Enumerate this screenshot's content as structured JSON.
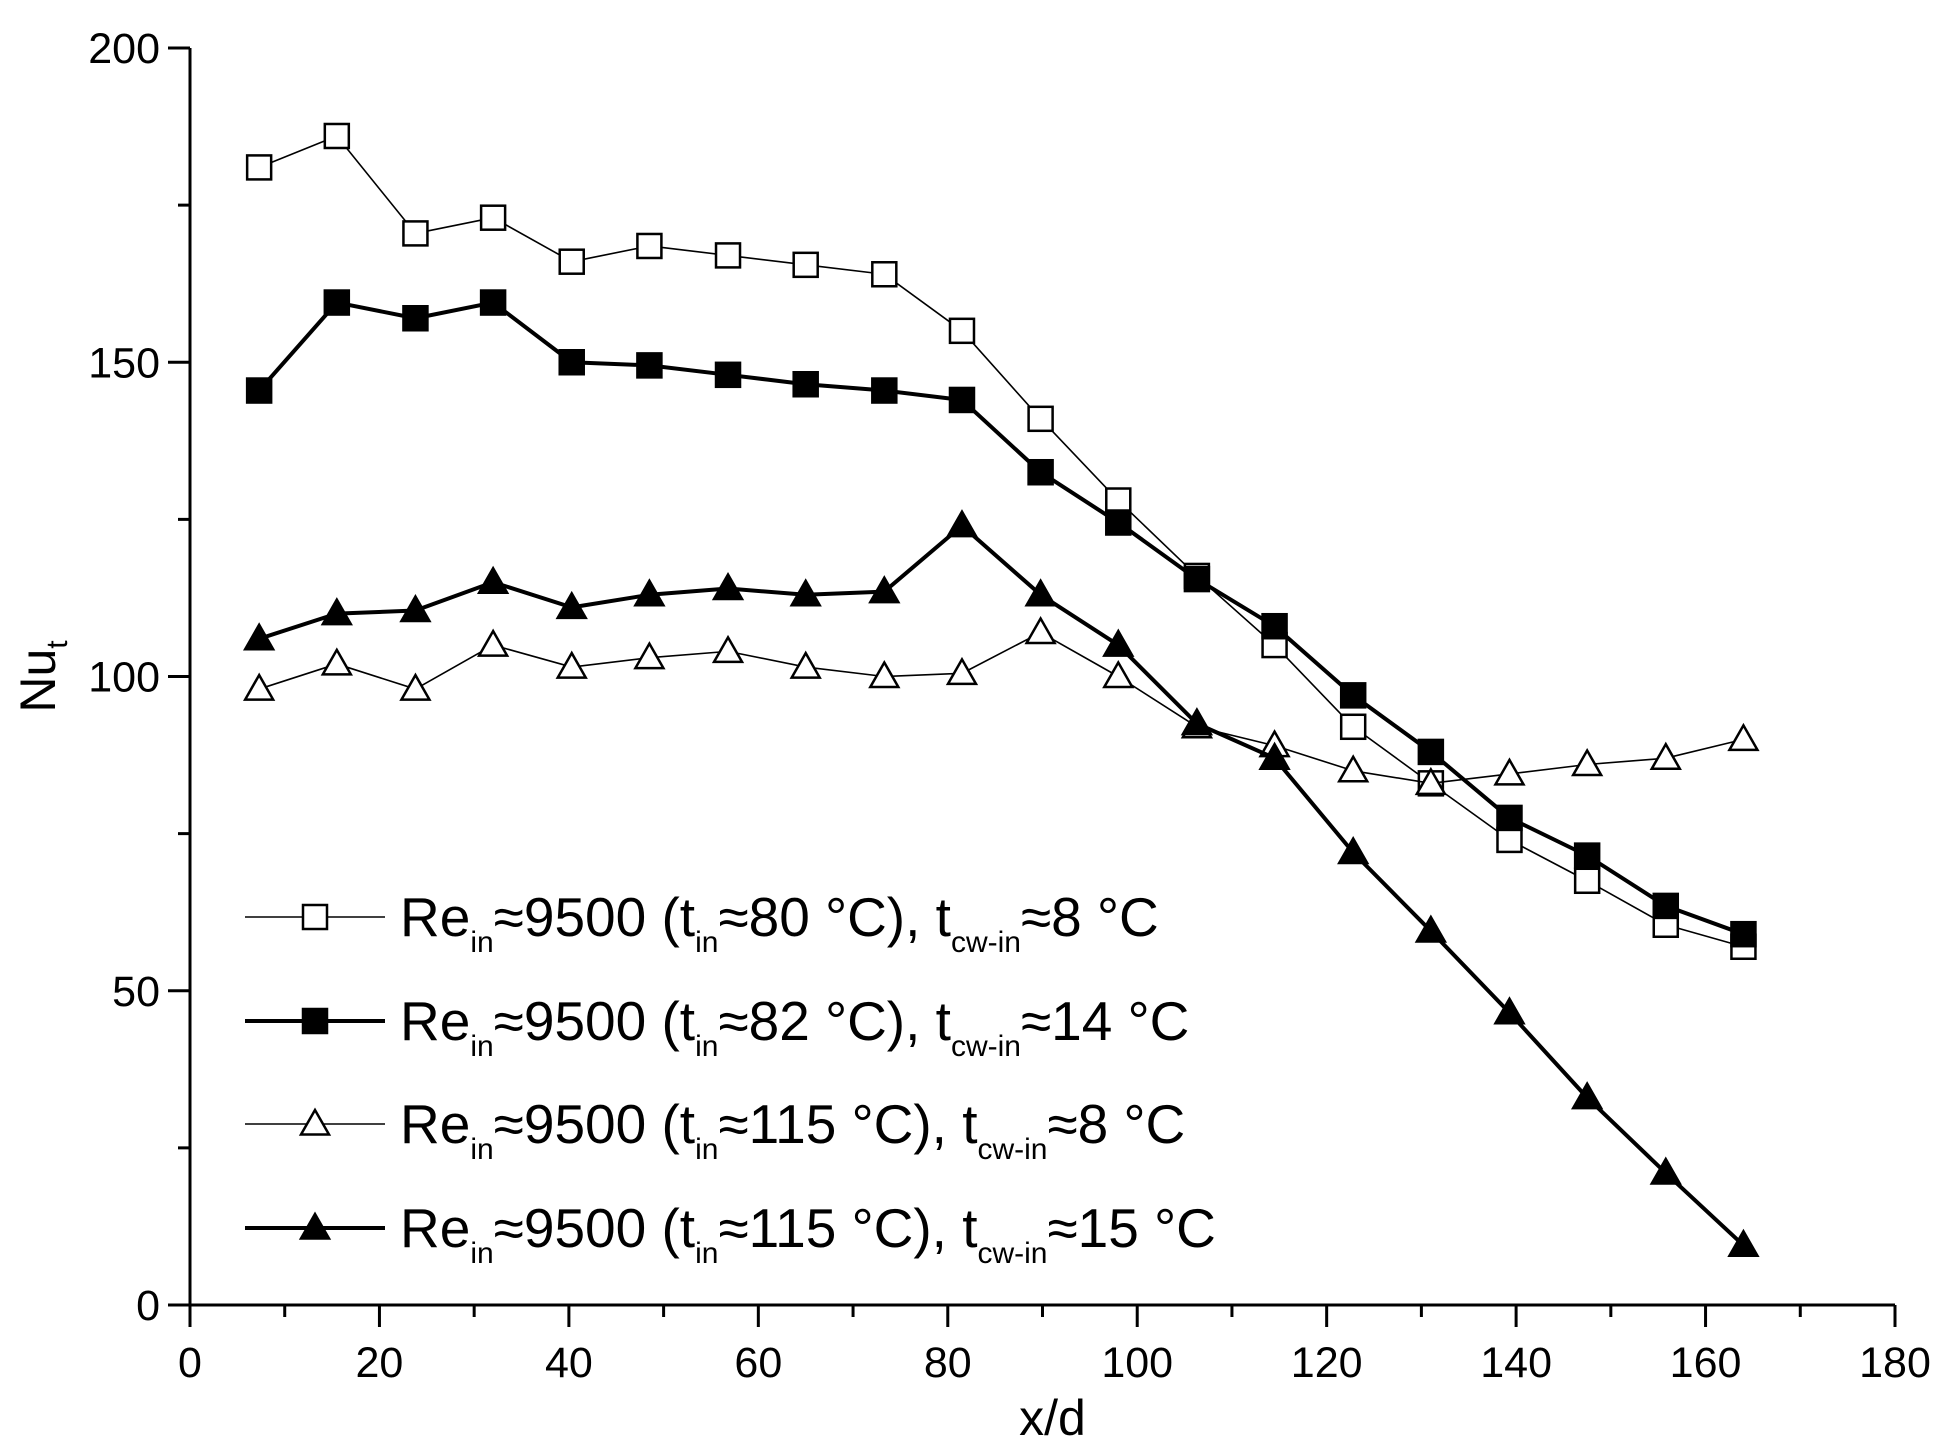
{
  "chart_data": {
    "type": "line",
    "title": "",
    "xlabel": "x/d",
    "ylabel": {
      "base": "Nu",
      "sub": "t"
    },
    "xlim": [
      0,
      180
    ],
    "ylim": [
      0,
      200
    ],
    "xticks": [
      0,
      20,
      40,
      60,
      80,
      100,
      120,
      140,
      160,
      180
    ],
    "yticks": [
      0,
      50,
      100,
      150,
      200
    ],
    "grid": false,
    "legend_position": "bottom-left",
    "x": [
      7.3,
      15.5,
      23.8,
      32.0,
      40.3,
      48.5,
      56.8,
      65.0,
      73.3,
      81.5,
      89.8,
      98.0,
      106.3,
      114.5,
      122.8,
      131.0,
      139.3,
      147.5,
      155.8,
      164.0
    ],
    "series": [
      {
        "name": "Re_in≈9500 (t_in≈80 °C), t_cw-in≈8 °C",
        "legend": {
          "p1": "Re",
          "s1": "in",
          "p2": "≈9500 (t",
          "s2": "in",
          "p3": "≈80 °C), t",
          "s3": "cw-in",
          "p4": "≈8 °C"
        },
        "marker": "square-open",
        "values": [
          181,
          186,
          170.5,
          173,
          166,
          168.5,
          167,
          165.5,
          164,
          155,
          141,
          128,
          116,
          105,
          92,
          83,
          74,
          67.5,
          60.5,
          57
        ]
      },
      {
        "name": "Re_in≈9500 (t_in≈82 °C), t_cw-in≈14 °C",
        "legend": {
          "p1": "Re",
          "s1": "in",
          "p2": "≈9500 (t",
          "s2": "in",
          "p3": "≈82 °C), t",
          "s3": "cw-in",
          "p4": "≈14 °C"
        },
        "marker": "square-filled",
        "values": [
          145.5,
          159.5,
          157,
          159.5,
          150,
          149.5,
          148,
          146.5,
          145.5,
          144,
          132.5,
          124.5,
          115.5,
          108,
          97,
          88,
          77.5,
          71.5,
          63.5,
          59
        ]
      },
      {
        "name": "Re_in≈9500 (t_in≈115 °C), t_cw-in≈8 °C",
        "legend": {
          "p1": "Re",
          "s1": "in",
          "p2": "≈9500 (t",
          "s2": "in",
          "p3": "≈115 °C), t",
          "s3": "cw-in",
          "p4": "≈8 °C"
        },
        "marker": "triangle-open",
        "values": [
          98,
          102,
          98,
          105,
          101.5,
          103,
          104,
          101.5,
          100,
          100.5,
          107,
          100,
          92,
          89,
          85,
          83,
          84.5,
          86,
          87,
          90
        ]
      },
      {
        "name": "Re_in≈9500 (t_in≈115 °C), t_cw-in≈15 °C",
        "legend": {
          "p1": "Re",
          "s1": "in",
          "p2": "≈9500 (t",
          "s2": "in",
          "p3": "≈115 °C), t",
          "s3": "cw-in",
          "p4": "≈15 °C"
        },
        "marker": "triangle-filled",
        "values": [
          106,
          110,
          110.5,
          115,
          111,
          113,
          114,
          113,
          113.5,
          124,
          113,
          105,
          92.5,
          87,
          72,
          59.5,
          46.5,
          33,
          21,
          9.5
        ]
      }
    ]
  }
}
